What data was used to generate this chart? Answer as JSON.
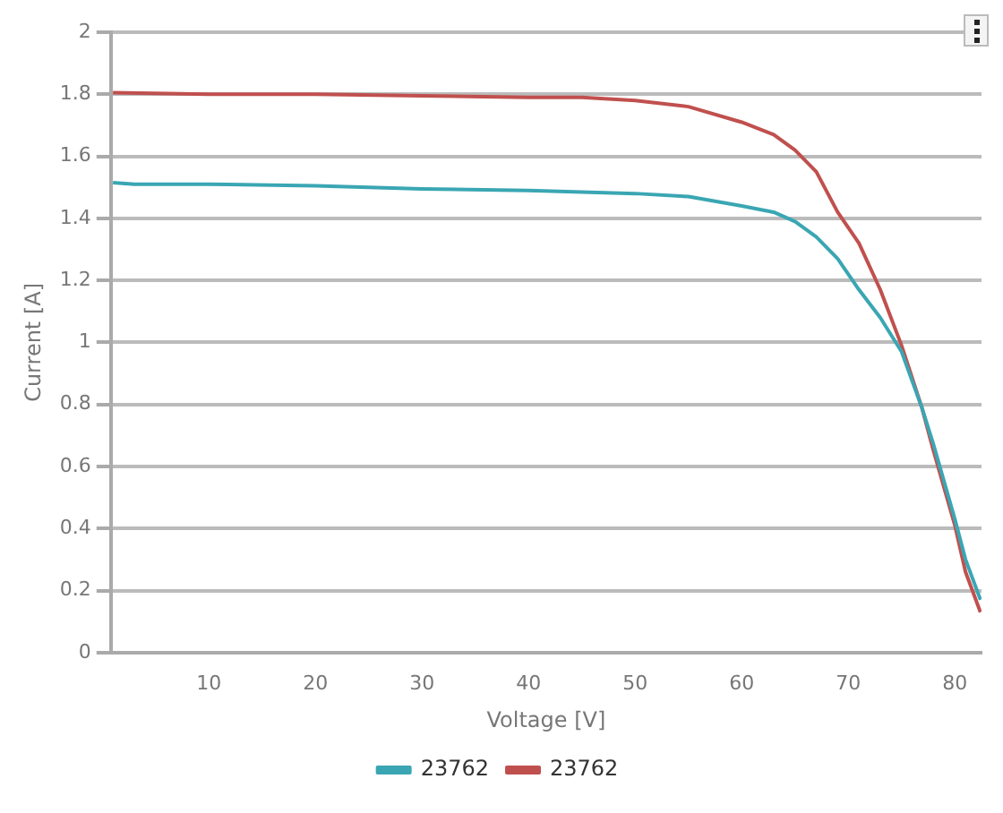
{
  "chart_data": {
    "type": "line",
    "xlabel": "Voltage [V]",
    "ylabel": "Current [A]",
    "xlim": [
      0.8,
      82.5
    ],
    "xticks": [
      10,
      20,
      30,
      40,
      50,
      60,
      70,
      80
    ],
    "ylim": [
      0,
      2
    ],
    "yticks": [
      0,
      0.2,
      0.4,
      0.6,
      0.8,
      1,
      1.2,
      1.4,
      1.6,
      1.8,
      2
    ],
    "grid": "y",
    "legend": "bottom",
    "marker": "none",
    "line_style": "solid",
    "series": [
      {
        "name": "23762",
        "color": "#3aa6b3",
        "x": [
          1,
          3,
          10,
          20,
          30,
          40,
          50,
          55,
          60,
          63,
          65,
          67,
          69,
          71,
          73,
          75,
          76.9,
          78,
          80,
          81,
          82.4
        ],
        "values": [
          1.515,
          1.51,
          1.51,
          1.505,
          1.495,
          1.49,
          1.48,
          1.47,
          1.44,
          1.42,
          1.39,
          1.34,
          1.27,
          1.17,
          1.08,
          0.97,
          0.79,
          0.67,
          0.43,
          0.3,
          0.17
        ]
      },
      {
        "name": "23762",
        "color": "#c0504e",
        "x": [
          1,
          10,
          20,
          30,
          40,
          45,
          50,
          55,
          60,
          63,
          65,
          67,
          69,
          71,
          73,
          75,
          76.9,
          78,
          80,
          81,
          82.4
        ],
        "values": [
          1.805,
          1.8,
          1.8,
          1.795,
          1.79,
          1.79,
          1.78,
          1.76,
          1.71,
          1.67,
          1.62,
          1.55,
          1.42,
          1.32,
          1.17,
          0.99,
          0.79,
          0.65,
          0.41,
          0.26,
          0.13
        ]
      }
    ]
  }
}
